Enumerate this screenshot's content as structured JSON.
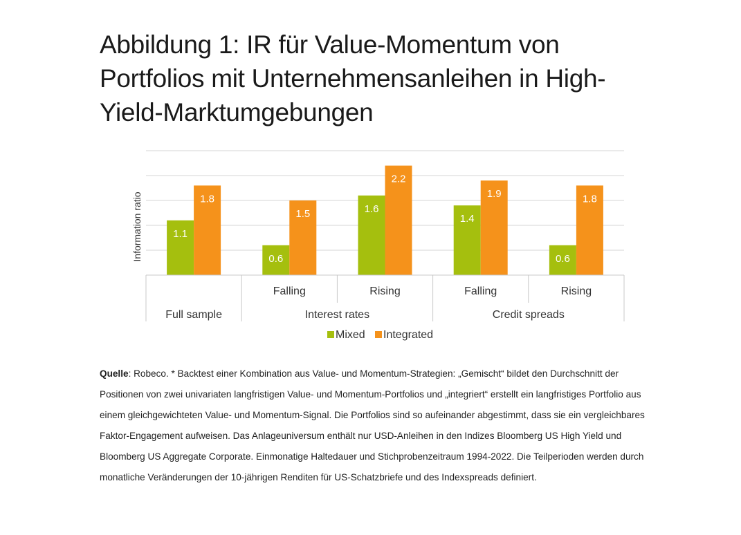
{
  "title_lines": [
    "Abbildung 1: IR für Value-Momentum von",
    "Portfolios mit Unternehmensanleihen in High-",
    "Yield-Marktumgebungen"
  ],
  "chart_data": {
    "type": "bar",
    "ylabel": "Information ratio",
    "ylim": [
      0,
      2.5
    ],
    "ytick_step": 0.5,
    "grid": true,
    "categories": [
      "Full sample",
      "Falling",
      "Rising",
      "Falling",
      "Rising"
    ],
    "groups": [
      {
        "label": "",
        "members": [
          0
        ]
      },
      {
        "label": "Interest rates",
        "members": [
          1,
          2
        ]
      },
      {
        "label": "Credit spreads",
        "members": [
          3,
          4
        ]
      }
    ],
    "series": [
      {
        "name": "Mixed",
        "color": "#a5bf0e",
        "values": [
          1.1,
          0.6,
          1.6,
          1.4,
          0.6
        ],
        "labels": [
          "1.1",
          "0.6",
          "1.6",
          "1.4",
          "0.6"
        ]
      },
      {
        "name": "Integrated",
        "color": "#f5921b",
        "values": [
          1.8,
          1.5,
          2.2,
          1.9,
          1.8
        ],
        "labels": [
          "1.8",
          "1.5",
          "2.2",
          "1.9",
          "1.8"
        ]
      }
    ],
    "legend_position": "bottom"
  },
  "note": {
    "source_label": "Quelle",
    "text": ": Robeco. * Backtest einer Kombination aus Value- und Momentum-Strategien: „Gemischt“ bildet den Durchschnitt der Positionen von zwei univariaten langfristigen Value- und Momentum-Portfolios und „integriert“ erstellt ein langfristiges Portfolio aus einem gleichgewichteten Value- und Momentum-Signal. Die Portfolios sind so aufeinander abgestimmt, dass sie ein vergleichbares Faktor-Engagement aufweisen. Das Anlageuniversum enthält nur USD-Anleihen in den Indizes Bloomberg US High Yield und Bloomberg US Aggregate Corporate. Einmonatige Haltedauer und Stichprobenzeitraum 1994-2022. Die Teilperioden werden durch monatliche Veränderungen der 10-jährigen Renditen für US-Schatzbriefe und des Indexspreads definiert."
  }
}
